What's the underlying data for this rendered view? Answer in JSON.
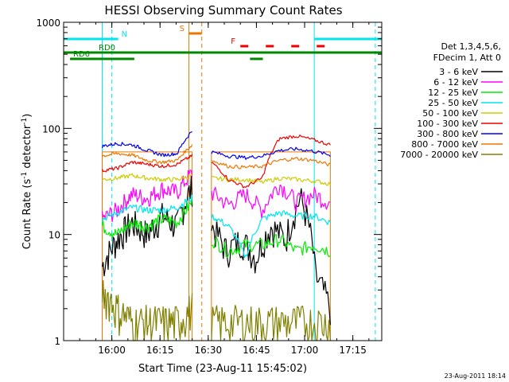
{
  "chart_data": {
    "type": "line",
    "title": "HESSI Observing Summary Count Rates",
    "xlabel": "Start Time (23-Aug-11 15:45:02)",
    "ylabel_main": "Count Rate (s",
    "ylabel_sup1": "-1",
    "ylabel_mid": " detector",
    "ylabel_sup2": "-1",
    "ylabel_end": ")",
    "yscale": "log",
    "xlim": [
      "15:45",
      "17:24"
    ],
    "ylim": [
      1,
      1000
    ],
    "x_ticks": [
      "16:00",
      "16:15",
      "16:30",
      "16:45",
      "17:00",
      "17:15"
    ],
    "y_ticks": [
      "1",
      "10",
      "100",
      "1000"
    ],
    "legend_header": [
      "Det 1,3,4,5,6,",
      "FDecim 1, Att 0"
    ],
    "timestamp": "23-Aug-2011 18:14",
    "flags": [
      {
        "label": "N",
        "color": "#00e5ee",
        "start": "15:45",
        "end": "16:02"
      },
      {
        "label": "N",
        "color": "#00e5ee",
        "start": "17:03",
        "end": "17:24"
      },
      {
        "label": "S",
        "color": "#ee7600",
        "start": "16:24",
        "end": "16:28"
      },
      {
        "label": "F",
        "color": "#ee0000",
        "start": "16:40",
        "end": "17:07"
      },
      {
        "label": "RD0",
        "color": "#008800",
        "start": "15:45",
        "end": "17:24"
      },
      {
        "label": "RD6",
        "color": "#008800",
        "start": "15:47",
        "end": "16:07"
      },
      {
        "label": "RD6",
        "color": "#008800",
        "start": "16:43",
        "end": "16:47"
      }
    ],
    "vlines": [
      {
        "time": "15:57",
        "color": "#00e5ee",
        "style": "solid"
      },
      {
        "time": "16:00",
        "color": "#00e5ee",
        "style": "dashed"
      },
      {
        "time": "16:24",
        "color": "#ee7600",
        "style": "solid"
      },
      {
        "time": "16:28",
        "color": "#ee7600",
        "style": "dashed"
      },
      {
        "time": "17:03",
        "color": "#00e5ee",
        "style": "solid"
      },
      {
        "time": "17:22",
        "color": "#00e5ee",
        "style": "dashed"
      }
    ],
    "segments": [
      {
        "start": "15:57",
        "end": "16:25"
      },
      {
        "start": "16:31",
        "end": "17:08"
      }
    ],
    "series": [
      {
        "name": "3 - 6 keV",
        "color": "#000000",
        "values": [
          [
            5,
            9,
            13,
            10,
            15,
            12,
            28
          ],
          [
            12,
            7,
            9,
            6,
            12,
            9,
            22,
            4,
            2
          ]
        ],
        "noise": 0.35
      },
      {
        "name": "6 - 12 keV",
        "color": "#ff00ff",
        "values": [
          [
            14,
            17,
            24,
            22,
            27,
            25,
            38
          ],
          [
            25,
            19,
            24,
            17,
            30,
            20,
            24,
            20
          ]
        ],
        "noise": 0.2
      },
      {
        "name": "12 - 25 keV",
        "color": "#00ee00",
        "values": [
          [
            12,
            10,
            13,
            12,
            14,
            13,
            20
          ],
          [
            9,
            7,
            8,
            8,
            9,
            7,
            8,
            7
          ]
        ],
        "noise": 0.15
      },
      {
        "name": "25 - 50 keV",
        "color": "#00e5ee",
        "values": [
          [
            14,
            16,
            18,
            17,
            17,
            18,
            22
          ],
          [
            15,
            12,
            6,
            14,
            16,
            15,
            15,
            13
          ]
        ],
        "noise": 0.08
      },
      {
        "name": "50 - 100 keV",
        "color": "#cccc00",
        "values": [
          [
            33,
            34,
            36,
            34,
            33,
            33,
            36
          ],
          [
            34,
            33,
            33,
            31,
            34,
            33,
            32,
            30
          ]
        ],
        "noise": 0.05
      },
      {
        "name": "100 - 300 keV",
        "color": "#ee0000",
        "values": [
          [
            40,
            42,
            48,
            46,
            44,
            46,
            55
          ],
          [
            48,
            33,
            28,
            34,
            80,
            85,
            78,
            70
          ]
        ],
        "noise": 0.04
      },
      {
        "name": "300 - 800 keV",
        "color": "#0000ee",
        "values": [
          [
            68,
            72,
            70,
            62,
            56,
            58,
            95
          ],
          [
            60,
            55,
            53,
            55,
            62,
            64,
            61,
            56
          ]
        ],
        "noise": 0.04
      },
      {
        "name": "800 - 7000 keV",
        "color": "#ee7600",
        "values": [
          [
            55,
            58,
            56,
            50,
            48,
            50,
            70
          ],
          [
            50,
            44,
            43,
            44,
            50,
            52,
            50,
            45
          ]
        ],
        "noise": 0.04
      },
      {
        "name": "7000 - 20000 keV",
        "color": "#808000",
        "values": [
          [
            3,
            2,
            1.5,
            1.5,
            1.5,
            1.5,
            2
          ],
          [
            1.5,
            1.5,
            1.5,
            1.5,
            1.5,
            1.5,
            1.5,
            1.5
          ]
        ],
        "noise": 0.45
      }
    ]
  }
}
